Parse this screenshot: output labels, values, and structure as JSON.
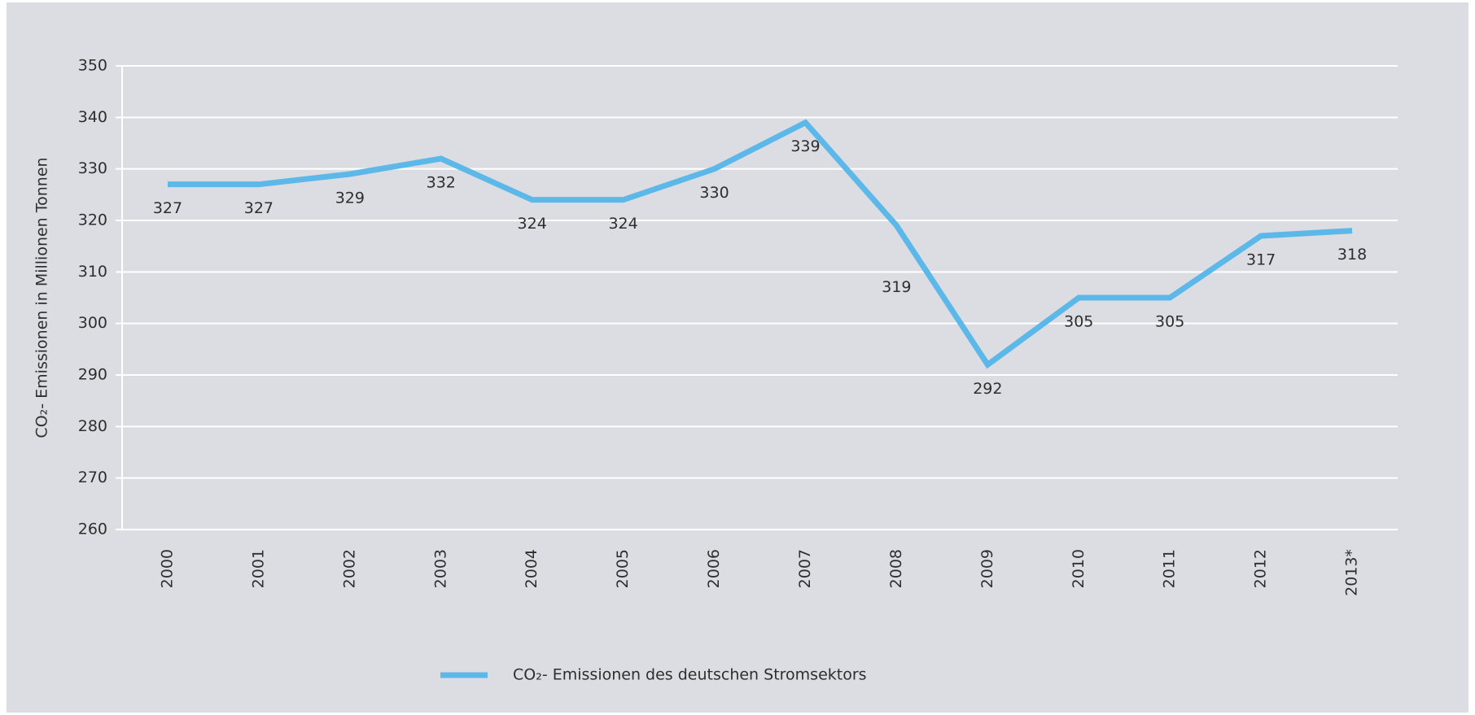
{
  "chart_data": {
    "type": "line",
    "y_label": "CO₂- Emissionen in Millionen Tonnen",
    "categories": [
      "2000",
      "2001",
      "2002",
      "2003",
      "2004",
      "2005",
      "2006",
      "2007",
      "2008",
      "2009",
      "2010",
      "2011",
      "2012",
      "2013*"
    ],
    "series": [
      {
        "name": "CO₂- Emissionen des deutschen Stromsektors",
        "color": "#5bb8e8",
        "values": [
          327,
          327,
          329,
          332,
          324,
          324,
          330,
          339,
          319,
          292,
          305,
          305,
          317,
          318
        ]
      }
    ],
    "ylim": [
      260,
      350
    ],
    "yticks": [
      260,
      270,
      280,
      290,
      300,
      310,
      320,
      330,
      340,
      350
    ],
    "grid": true
  }
}
